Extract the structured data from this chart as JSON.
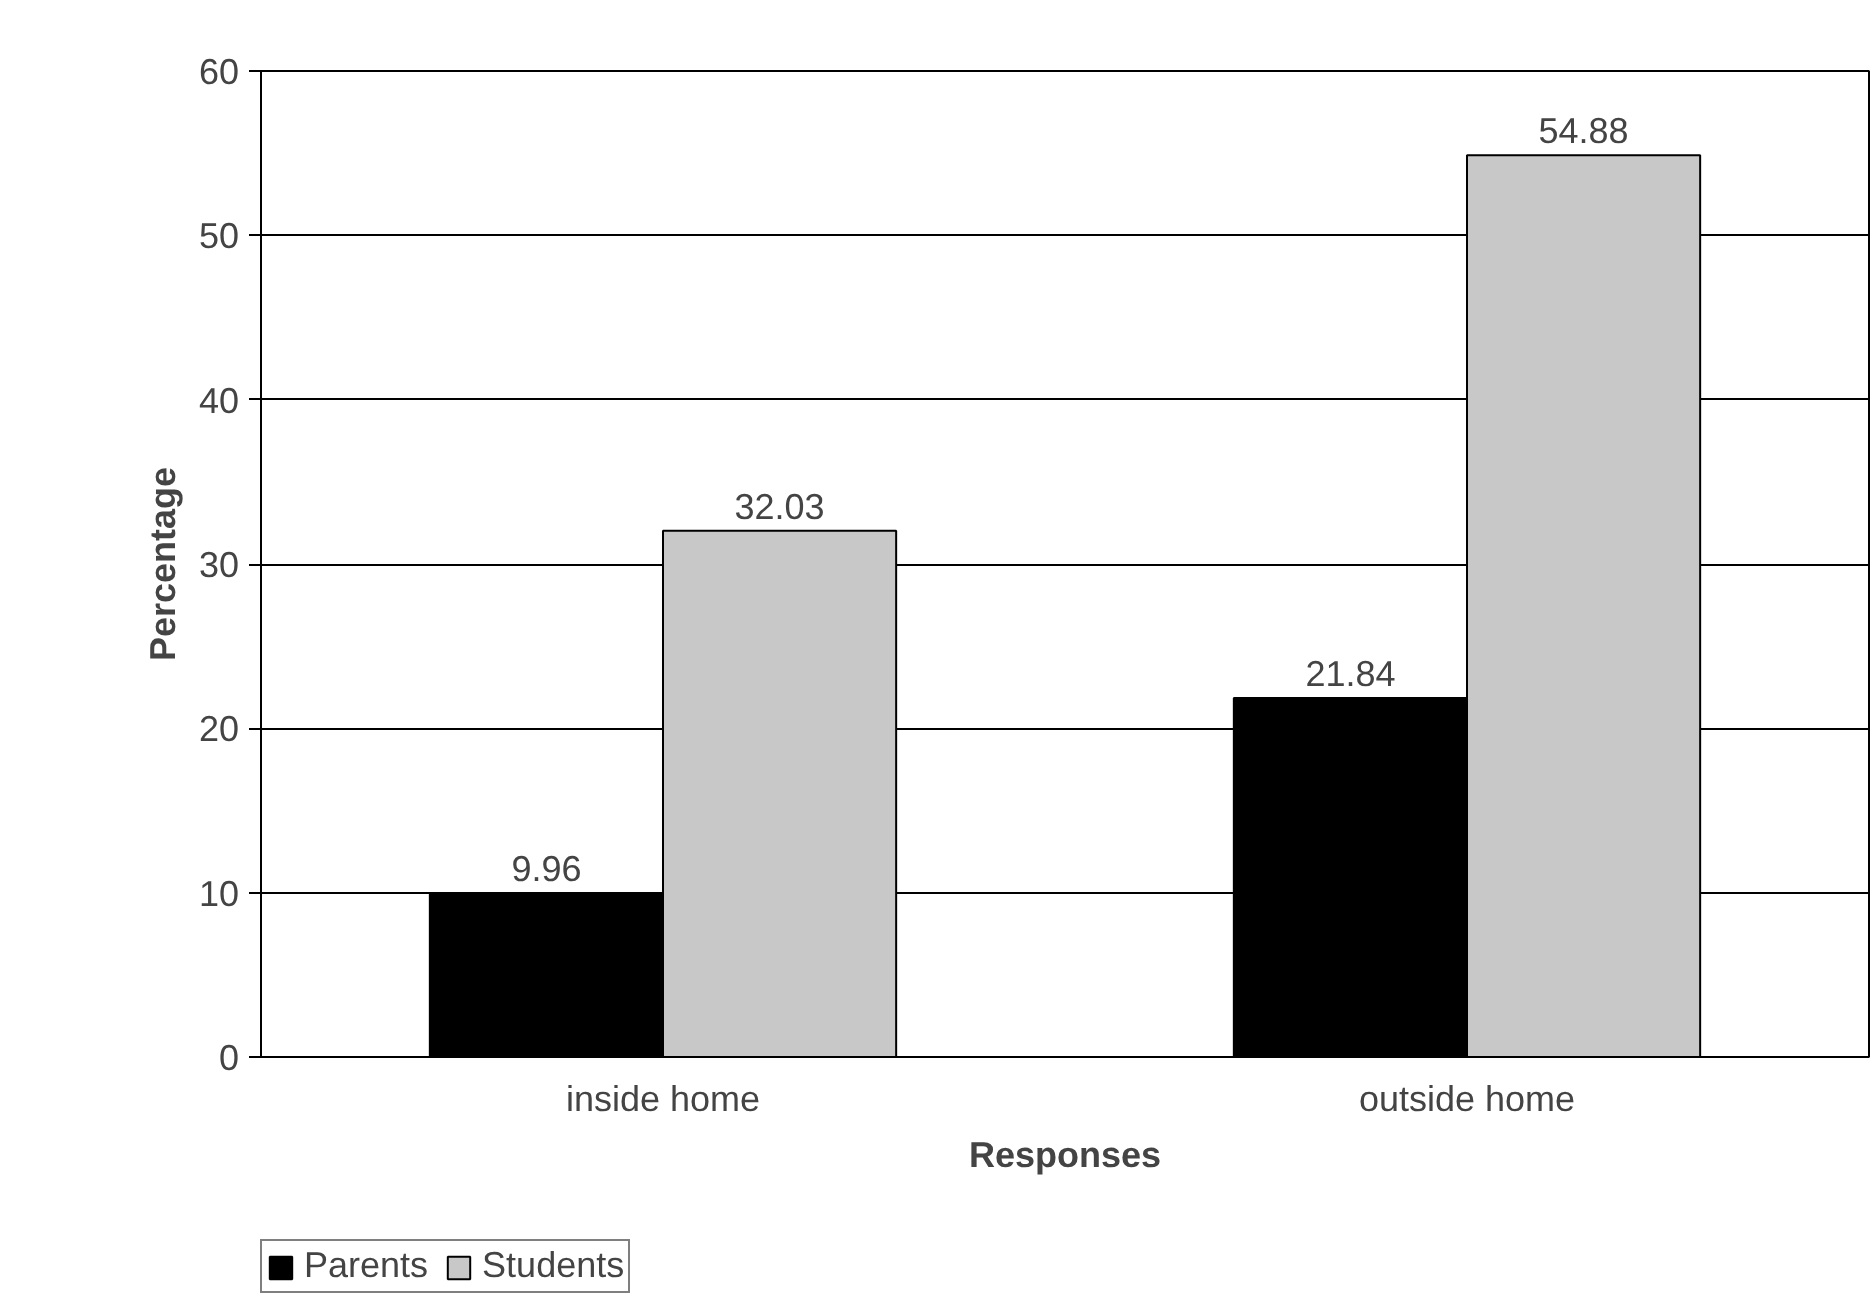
{
  "chart_data": {
    "type": "bar",
    "xlabel": "Responses",
    "ylabel": "Percentage",
    "categories": [
      "inside home",
      "outside home"
    ],
    "series": [
      {
        "name": "Parents",
        "color": "#000000",
        "values": [
          9.96,
          21.84
        ]
      },
      {
        "name": "Students",
        "color": "#c8c8c8",
        "values": [
          32.03,
          54.88
        ]
      }
    ],
    "ylim": [
      0,
      60
    ],
    "yticks": [
      0,
      10,
      20,
      30,
      40,
      50,
      60
    ],
    "grid": "y",
    "legend": "bottom left",
    "data_labels": true
  }
}
